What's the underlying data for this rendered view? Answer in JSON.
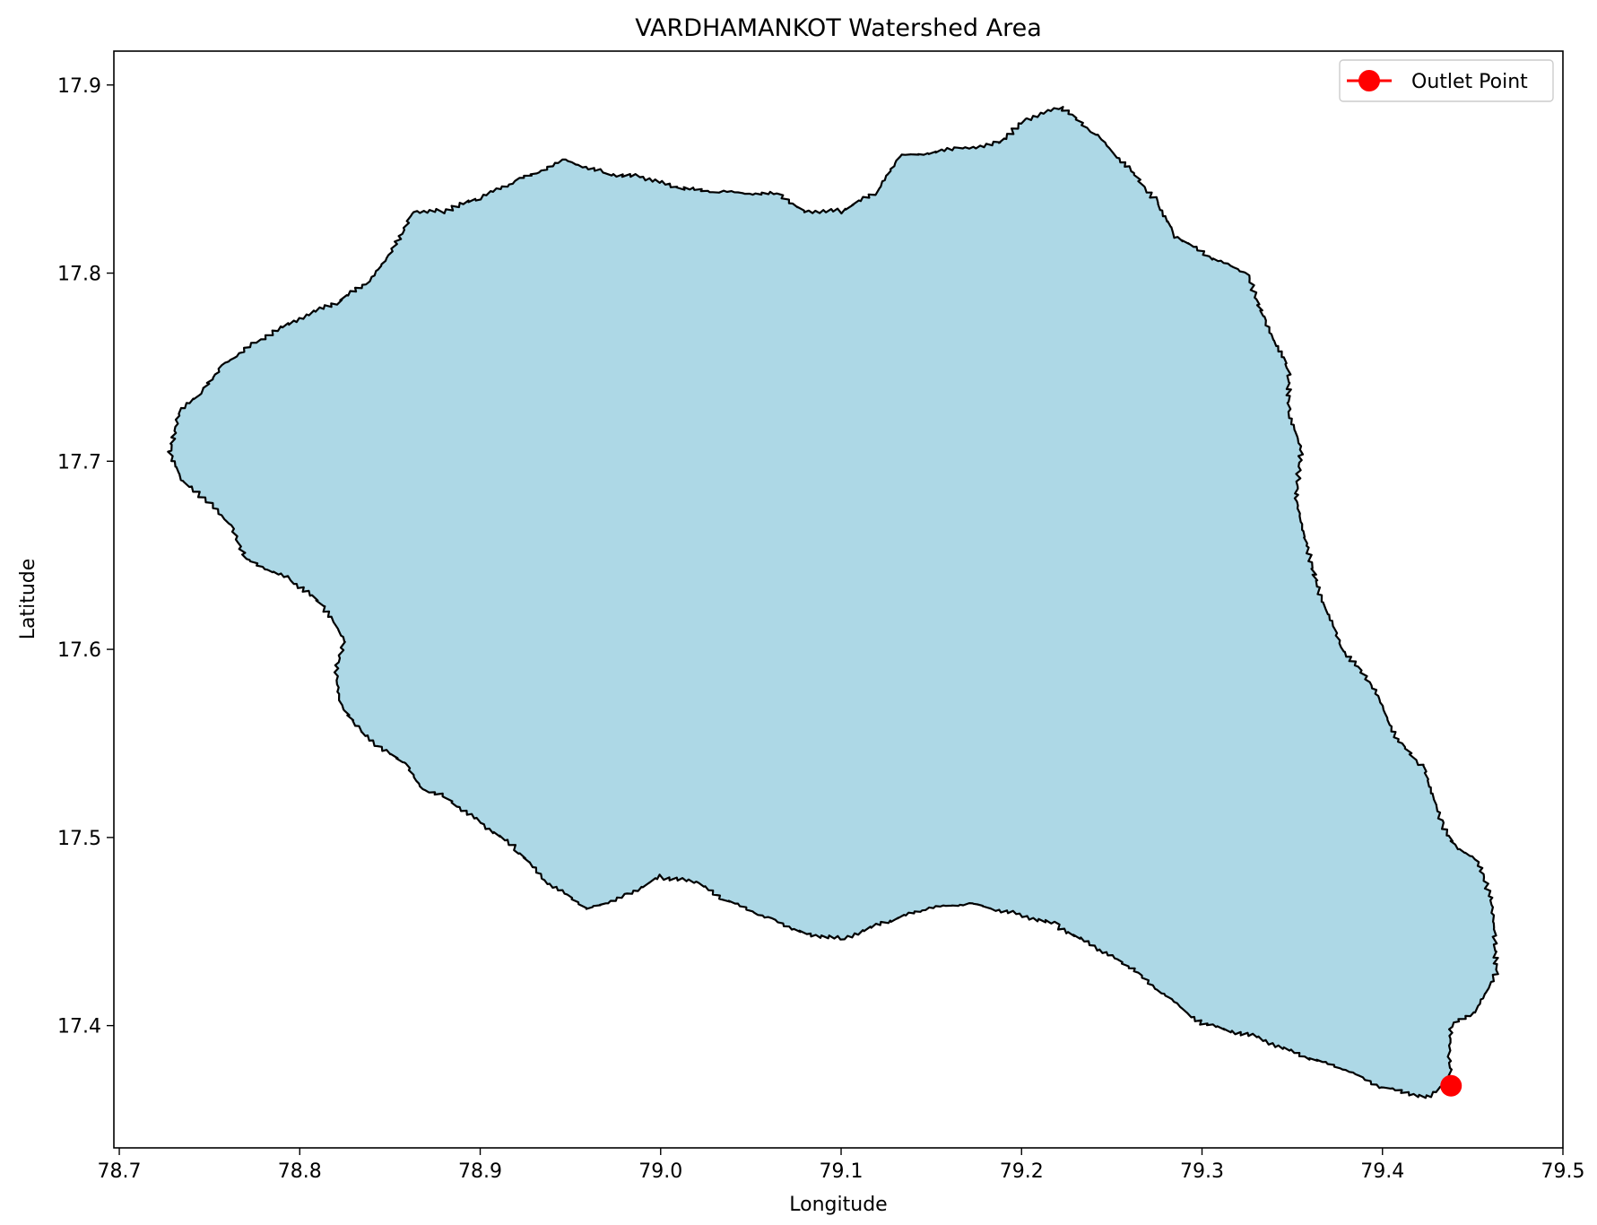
{
  "chart_data": {
    "type": "map",
    "title": "VARDHAMANKOT Watershed Area",
    "xlabel": "Longitude",
    "ylabel": "Latitude",
    "xlim": [
      78.697,
      79.5
    ],
    "ylim": [
      17.335,
      17.918
    ],
    "xticks": [
      78.7,
      78.8,
      78.9,
      79.0,
      79.1,
      79.2,
      79.3,
      79.4,
      79.5
    ],
    "xtick_labels": [
      "78.7",
      "78.8",
      "78.9",
      "79.0",
      "79.1",
      "79.2",
      "79.3",
      "79.4",
      "79.5"
    ],
    "yticks": [
      17.4,
      17.5,
      17.6,
      17.7,
      17.8,
      17.9
    ],
    "ytick_labels": [
      "17.4",
      "17.5",
      "17.6",
      "17.7",
      "17.8",
      "17.9"
    ],
    "grid": false,
    "legend": {
      "position": "top-right",
      "entries": [
        "Outlet Point"
      ]
    },
    "colors": {
      "watershed_fill": "#add8e6",
      "boundary": "#000000",
      "outlet": "#ff0000"
    },
    "outlet_point": {
      "name": "Outlet Point",
      "lon": 79.438,
      "lat": 17.368
    },
    "watershed_boundary": [
      [
        78.733,
        17.726
      ],
      [
        78.745,
        17.736
      ],
      [
        78.757,
        17.751
      ],
      [
        78.775,
        17.763
      ],
      [
        78.8,
        17.776
      ],
      [
        78.822,
        17.785
      ],
      [
        78.84,
        17.797
      ],
      [
        78.853,
        17.815
      ],
      [
        78.863,
        17.833
      ],
      [
        78.88,
        17.833
      ],
      [
        78.9,
        17.84
      ],
      [
        78.92,
        17.849
      ],
      [
        78.947,
        17.86
      ],
      [
        78.97,
        17.853
      ],
      [
        78.99,
        17.851
      ],
      [
        79.01,
        17.845
      ],
      [
        79.035,
        17.843
      ],
      [
        79.065,
        17.842
      ],
      [
        79.08,
        17.833
      ],
      [
        79.1,
        17.833
      ],
      [
        79.12,
        17.843
      ],
      [
        79.132,
        17.862
      ],
      [
        79.165,
        17.866
      ],
      [
        79.187,
        17.869
      ],
      [
        79.203,
        17.882
      ],
      [
        79.222,
        17.888
      ],
      [
        79.242,
        17.873
      ],
      [
        79.262,
        17.853
      ],
      [
        79.275,
        17.838
      ],
      [
        79.285,
        17.82
      ],
      [
        79.305,
        17.808
      ],
      [
        79.325,
        17.8
      ],
      [
        79.335,
        17.774
      ],
      [
        79.348,
        17.749
      ],
      [
        79.348,
        17.726
      ],
      [
        79.355,
        17.706
      ],
      [
        79.352,
        17.68
      ],
      [
        79.358,
        17.655
      ],
      [
        79.365,
        17.63
      ],
      [
        79.378,
        17.6
      ],
      [
        79.395,
        17.58
      ],
      [
        79.408,
        17.552
      ],
      [
        79.423,
        17.537
      ],
      [
        79.433,
        17.507
      ],
      [
        79.44,
        17.496
      ],
      [
        79.453,
        17.487
      ],
      [
        79.46,
        17.468
      ],
      [
        79.462,
        17.452
      ],
      [
        79.463,
        17.428
      ],
      [
        79.452,
        17.408
      ],
      [
        79.438,
        17.4
      ],
      [
        79.437,
        17.383
      ],
      [
        79.438,
        17.372
      ],
      [
        79.425,
        17.362
      ],
      [
        79.4,
        17.367
      ],
      [
        79.378,
        17.377
      ],
      [
        79.355,
        17.384
      ],
      [
        79.33,
        17.394
      ],
      [
        79.3,
        17.401
      ],
      [
        79.277,
        17.418
      ],
      [
        79.26,
        17.431
      ],
      [
        79.24,
        17.442
      ],
      [
        79.218,
        17.454
      ],
      [
        79.195,
        17.46
      ],
      [
        79.17,
        17.465
      ],
      [
        79.147,
        17.462
      ],
      [
        79.125,
        17.455
      ],
      [
        79.1,
        17.446
      ],
      [
        79.08,
        17.449
      ],
      [
        79.058,
        17.458
      ],
      [
        79.035,
        17.467
      ],
      [
        79.02,
        17.476
      ],
      [
        79.0,
        17.479
      ],
      [
        78.98,
        17.469
      ],
      [
        78.96,
        17.462
      ],
      [
        78.937,
        17.476
      ],
      [
        78.92,
        17.494
      ],
      [
        78.9,
        17.508
      ],
      [
        78.88,
        17.522
      ],
      [
        78.868,
        17.526
      ],
      [
        78.858,
        17.54
      ],
      [
        78.843,
        17.548
      ],
      [
        78.832,
        17.558
      ],
      [
        78.822,
        17.572
      ],
      [
        78.82,
        17.59
      ],
      [
        78.825,
        17.605
      ],
      [
        78.812,
        17.624
      ],
      [
        78.795,
        17.637
      ],
      [
        78.77,
        17.648
      ],
      [
        78.762,
        17.666
      ],
      [
        78.75,
        17.678
      ],
      [
        78.735,
        17.689
      ],
      [
        78.728,
        17.704
      ]
    ]
  }
}
